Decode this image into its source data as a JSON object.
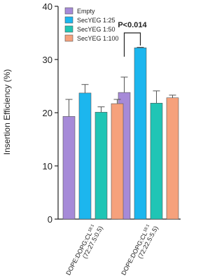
{
  "chart_data": {
    "type": "bar",
    "y_label": "Insertion Efficiency (%)",
    "categories": [
      "DOPE:DOPG:CL",
      "DOPE:DOPG:CL"
    ],
    "category_superscripts": [
      "18:1",
      "18:1"
    ],
    "category_ratios": [
      "(72:27.5:0.5)",
      "(72:22.5:5.5)"
    ],
    "series": [
      {
        "name": "Empty",
        "color": "#a68ad8",
        "values": [
          19.3,
          23.8
        ],
        "errors": [
          3.2,
          2.9
        ]
      },
      {
        "name": "SecYEG 1:25",
        "color": "#1cb6ee",
        "values": [
          23.7,
          32.2
        ],
        "errors": [
          1.6,
          0.1
        ]
      },
      {
        "name": "SecYEG 1:50",
        "color": "#20c5b5",
        "values": [
          20.1,
          21.8
        ],
        "errors": [
          1.0,
          2.3
        ]
      },
      {
        "name": "SecYEG 1:100",
        "color": "#f6a17c",
        "values": [
          21.7,
          22.8
        ],
        "errors": [
          0.8,
          0.5
        ]
      }
    ],
    "annotation": "P<0.014",
    "ylim": [
      0,
      40
    ],
    "yticks": [
      0,
      10,
      20,
      30,
      40
    ],
    "legend": "top-left"
  }
}
